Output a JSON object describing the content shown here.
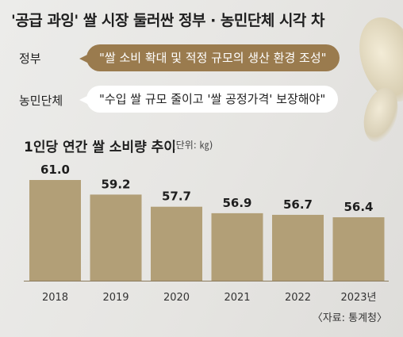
{
  "title": "'공급 과잉' 쌀 시장 둘러싼 정부 · 농민단체 시각 차",
  "views": [
    {
      "label": "정부",
      "quote": "\"쌀 소비 확대 및 적정 규모의 생산 환경 조성\""
    },
    {
      "label": "농민단체",
      "quote": "\"수입 쌀 규모 줄이고 '쌀 공정가격' 보장해야\""
    }
  ],
  "source": "〈자료: 통계청〉",
  "colors": {
    "bar": "#b29f77",
    "bubble_gov": "#9a7b4e",
    "bubble_farm": "#ffffff"
  },
  "chart_data": {
    "type": "bar",
    "title": "1인당 연간 쌀 소비량 추이",
    "unit_note": "(단위: ㎏)",
    "categories": [
      "2018",
      "2019",
      "2020",
      "2021",
      "2022",
      "2023년"
    ],
    "values": [
      61.0,
      59.2,
      57.7,
      56.9,
      56.7,
      56.4
    ],
    "value_labels": [
      "61.0",
      "59.2",
      "57.7",
      "56.9",
      "56.7",
      "56.4"
    ],
    "xlabel": "",
    "ylabel": "",
    "grid": false
  }
}
